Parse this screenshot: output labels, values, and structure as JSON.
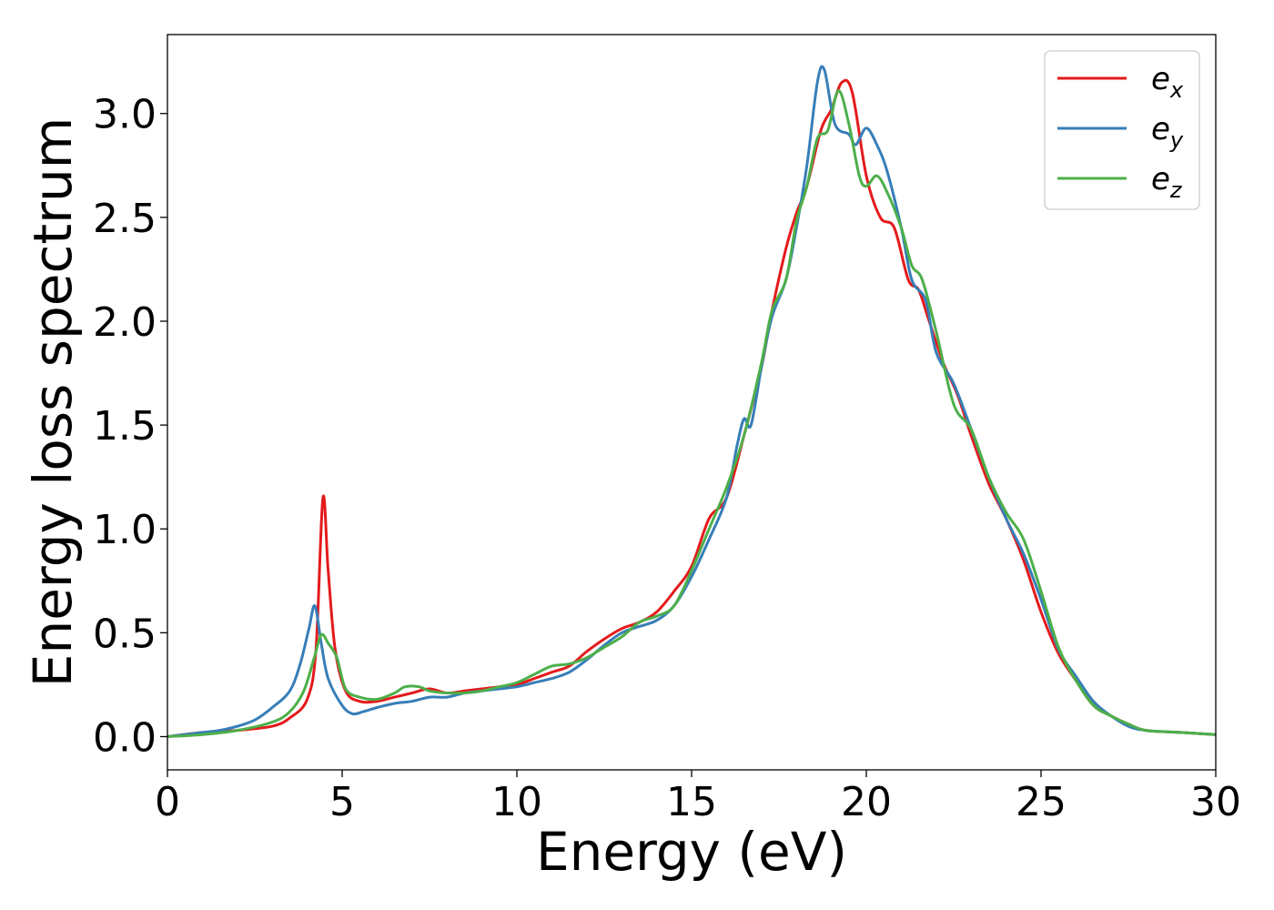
{
  "chart_data": {
    "type": "line",
    "title": "",
    "xlabel": "Energy (eV)",
    "ylabel": "Energy loss spectrum",
    "xlim": [
      0,
      30
    ],
    "ylim": [
      -0.16,
      3.38
    ],
    "xticks": [
      0,
      5,
      10,
      15,
      20,
      25,
      30
    ],
    "xtick_labels": [
      "0",
      "5",
      "10",
      "15",
      "20",
      "25",
      "30"
    ],
    "yticks": [
      0.0,
      0.5,
      1.0,
      1.5,
      2.0,
      2.5,
      3.0
    ],
    "ytick_labels": [
      "0.0",
      "0.5",
      "1.0",
      "1.5",
      "2.0",
      "2.5",
      "3.0"
    ],
    "grid": false,
    "legend_position": "top-right",
    "series": [
      {
        "name": "e_x",
        "label_base": "e",
        "label_sub": "x",
        "color": "#e41a1c",
        "points": [
          [
            0,
            0
          ],
          [
            1,
            0.02
          ],
          [
            2,
            0.03
          ],
          [
            3,
            0.05
          ],
          [
            3.5,
            0.09
          ],
          [
            4,
            0.18
          ],
          [
            4.25,
            0.42
          ],
          [
            4.45,
            1.15
          ],
          [
            4.6,
            0.8
          ],
          [
            4.8,
            0.42
          ],
          [
            5.1,
            0.22
          ],
          [
            5.5,
            0.17
          ],
          [
            6,
            0.17
          ],
          [
            6.5,
            0.19
          ],
          [
            7,
            0.21
          ],
          [
            7.5,
            0.23
          ],
          [
            8,
            0.21
          ],
          [
            8.5,
            0.22
          ],
          [
            9,
            0.23
          ],
          [
            9.5,
            0.24
          ],
          [
            10,
            0.25
          ],
          [
            10.5,
            0.28
          ],
          [
            11,
            0.31
          ],
          [
            11.5,
            0.34
          ],
          [
            12,
            0.41
          ],
          [
            12.5,
            0.47
          ],
          [
            13,
            0.52
          ],
          [
            13.5,
            0.55
          ],
          [
            14,
            0.6
          ],
          [
            14.5,
            0.7
          ],
          [
            15,
            0.82
          ],
          [
            15.5,
            1.05
          ],
          [
            16,
            1.15
          ],
          [
            16.5,
            1.45
          ],
          [
            17,
            1.78
          ],
          [
            17.3,
            2.05
          ],
          [
            17.7,
            2.35
          ],
          [
            18,
            2.52
          ],
          [
            18.3,
            2.65
          ],
          [
            18.7,
            2.92
          ],
          [
            19,
            3.02
          ],
          [
            19.3,
            3.15
          ],
          [
            19.6,
            3.1
          ],
          [
            20,
            2.7
          ],
          [
            20.4,
            2.5
          ],
          [
            20.8,
            2.45
          ],
          [
            21.2,
            2.2
          ],
          [
            21.5,
            2.15
          ],
          [
            21.8,
            2.0
          ],
          [
            22.2,
            1.8
          ],
          [
            22.6,
            1.65
          ],
          [
            23,
            1.45
          ],
          [
            23.5,
            1.22
          ],
          [
            24,
            1.05
          ],
          [
            24.5,
            0.85
          ],
          [
            25,
            0.6
          ],
          [
            25.5,
            0.4
          ],
          [
            26,
            0.27
          ],
          [
            26.5,
            0.15
          ],
          [
            27,
            0.1
          ],
          [
            27.5,
            0.06
          ],
          [
            28,
            0.03
          ],
          [
            29,
            0.02
          ],
          [
            30,
            0.01
          ]
        ]
      },
      {
        "name": "e_y",
        "label_base": "e",
        "label_sub": "y",
        "color": "#377eb8",
        "points": [
          [
            0,
            0
          ],
          [
            1,
            0.02
          ],
          [
            1.5,
            0.03
          ],
          [
            2,
            0.05
          ],
          [
            2.5,
            0.08
          ],
          [
            3,
            0.14
          ],
          [
            3.5,
            0.22
          ],
          [
            3.8,
            0.35
          ],
          [
            4.05,
            0.52
          ],
          [
            4.22,
            0.63
          ],
          [
            4.4,
            0.45
          ],
          [
            4.6,
            0.28
          ],
          [
            5,
            0.15
          ],
          [
            5.3,
            0.11
          ],
          [
            5.6,
            0.12
          ],
          [
            6,
            0.14
          ],
          [
            6.5,
            0.16
          ],
          [
            7,
            0.17
          ],
          [
            7.5,
            0.19
          ],
          [
            8,
            0.19
          ],
          [
            8.5,
            0.21
          ],
          [
            9,
            0.22
          ],
          [
            9.5,
            0.23
          ],
          [
            10,
            0.24
          ],
          [
            10.5,
            0.26
          ],
          [
            11,
            0.28
          ],
          [
            11.5,
            0.31
          ],
          [
            12,
            0.37
          ],
          [
            12.5,
            0.44
          ],
          [
            13,
            0.5
          ],
          [
            13.5,
            0.53
          ],
          [
            14,
            0.56
          ],
          [
            14.5,
            0.63
          ],
          [
            15,
            0.77
          ],
          [
            15.5,
            0.95
          ],
          [
            16,
            1.15
          ],
          [
            16.3,
            1.4
          ],
          [
            16.5,
            1.53
          ],
          [
            16.7,
            1.5
          ],
          [
            17,
            1.78
          ],
          [
            17.3,
            2.02
          ],
          [
            17.7,
            2.2
          ],
          [
            18,
            2.45
          ],
          [
            18.3,
            2.75
          ],
          [
            18.6,
            3.15
          ],
          [
            18.8,
            3.21
          ],
          [
            19.1,
            2.95
          ],
          [
            19.5,
            2.9
          ],
          [
            19.7,
            2.85
          ],
          [
            20,
            2.93
          ],
          [
            20.3,
            2.85
          ],
          [
            20.6,
            2.72
          ],
          [
            21,
            2.45
          ],
          [
            21.3,
            2.2
          ],
          [
            21.7,
            2.1
          ],
          [
            22,
            1.85
          ],
          [
            22.5,
            1.7
          ],
          [
            23,
            1.48
          ],
          [
            23.5,
            1.25
          ],
          [
            24,
            1.05
          ],
          [
            24.5,
            0.88
          ],
          [
            25,
            0.66
          ],
          [
            25.5,
            0.42
          ],
          [
            26,
            0.29
          ],
          [
            26.5,
            0.17
          ],
          [
            27,
            0.1
          ],
          [
            27.5,
            0.05
          ],
          [
            28,
            0.03
          ],
          [
            29,
            0.02
          ],
          [
            30,
            0.01
          ]
        ]
      },
      {
        "name": "e_z",
        "label_base": "e",
        "label_sub": "z",
        "color": "#4daf4a",
        "points": [
          [
            0,
            0
          ],
          [
            1,
            0.01
          ],
          [
            2,
            0.03
          ],
          [
            3,
            0.07
          ],
          [
            3.5,
            0.12
          ],
          [
            3.9,
            0.22
          ],
          [
            4.2,
            0.38
          ],
          [
            4.4,
            0.49
          ],
          [
            4.6,
            0.45
          ],
          [
            4.85,
            0.38
          ],
          [
            5.1,
            0.23
          ],
          [
            5.5,
            0.19
          ],
          [
            6,
            0.18
          ],
          [
            6.5,
            0.21
          ],
          [
            6.8,
            0.24
          ],
          [
            7.2,
            0.24
          ],
          [
            7.5,
            0.22
          ],
          [
            8,
            0.21
          ],
          [
            8.5,
            0.21
          ],
          [
            9,
            0.22
          ],
          [
            9.5,
            0.24
          ],
          [
            10,
            0.26
          ],
          [
            10.5,
            0.3
          ],
          [
            11,
            0.34
          ],
          [
            11.5,
            0.35
          ],
          [
            12,
            0.38
          ],
          [
            12.5,
            0.43
          ],
          [
            13,
            0.48
          ],
          [
            13.5,
            0.55
          ],
          [
            14,
            0.58
          ],
          [
            14.5,
            0.63
          ],
          [
            15,
            0.8
          ],
          [
            15.5,
            1.0
          ],
          [
            16,
            1.2
          ],
          [
            16.5,
            1.45
          ],
          [
            17,
            1.8
          ],
          [
            17.3,
            2.05
          ],
          [
            17.7,
            2.2
          ],
          [
            18,
            2.48
          ],
          [
            18.3,
            2.65
          ],
          [
            18.6,
            2.88
          ],
          [
            18.9,
            2.92
          ],
          [
            19.2,
            3.11
          ],
          [
            19.5,
            2.95
          ],
          [
            19.8,
            2.7
          ],
          [
            20,
            2.65
          ],
          [
            20.3,
            2.7
          ],
          [
            20.6,
            2.62
          ],
          [
            21,
            2.45
          ],
          [
            21.3,
            2.27
          ],
          [
            21.6,
            2.2
          ],
          [
            22,
            1.95
          ],
          [
            22.5,
            1.6
          ],
          [
            23,
            1.48
          ],
          [
            23.5,
            1.25
          ],
          [
            24,
            1.08
          ],
          [
            24.5,
            0.95
          ],
          [
            25,
            0.7
          ],
          [
            25.5,
            0.43
          ],
          [
            26,
            0.27
          ],
          [
            26.5,
            0.15
          ],
          [
            27,
            0.1
          ],
          [
            27.5,
            0.06
          ],
          [
            28,
            0.03
          ],
          [
            29,
            0.02
          ],
          [
            30,
            0.01
          ]
        ]
      }
    ]
  }
}
